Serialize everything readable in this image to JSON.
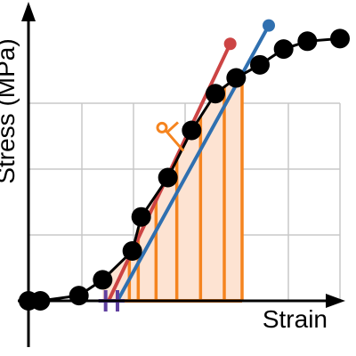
{
  "chart_data": {
    "type": "line",
    "title": "",
    "xlabel": "Strain",
    "ylabel": "Stress (MPa)",
    "xlim": [
      0,
      1.08
    ],
    "ylim": [
      0,
      1.12
    ],
    "grid": true,
    "legend": "none",
    "colors": {
      "data": "#000000",
      "offset_fit": "#cc4444",
      "elastic_fit": "#3070b0",
      "area_fill": "#fde3d2",
      "area_stroke": "#f5841f",
      "marker": "#6040a0",
      "grid": "#c8c8c8"
    },
    "series": [
      {
        "role": "data",
        "style": "black markers with line",
        "x": [
          0.0,
          0.04,
          0.17,
          0.25,
          0.35,
          0.38,
          0.47,
          0.55,
          0.63,
          0.7,
          0.78,
          0.86,
          0.94,
          1.05
        ],
        "y": [
          0.0,
          0.0,
          0.02,
          0.08,
          0.19,
          0.32,
          0.47,
          0.65,
          0.79,
          0.85,
          0.9,
          0.96,
          0.99,
          1.0
        ]
      },
      {
        "role": "offset-fit",
        "style": "red line",
        "x": [
          0.27,
          0.68
        ],
        "y": [
          0.0,
          0.98
        ]
      },
      {
        "role": "elastic-fit",
        "style": "blue line",
        "x": [
          0.3,
          0.81
        ],
        "y": [
          0.0,
          1.05
        ]
      }
    ],
    "area_bars_x": [
      0.34,
      0.37,
      0.43,
      0.5,
      0.58,
      0.66,
      0.72
    ],
    "area_end_x": 0.72,
    "area_start_x": 0.25,
    "bracket_x": [
      0.26,
      0.3
    ],
    "scissor_marker": {
      "x": 0.48,
      "y": 0.64
    }
  }
}
